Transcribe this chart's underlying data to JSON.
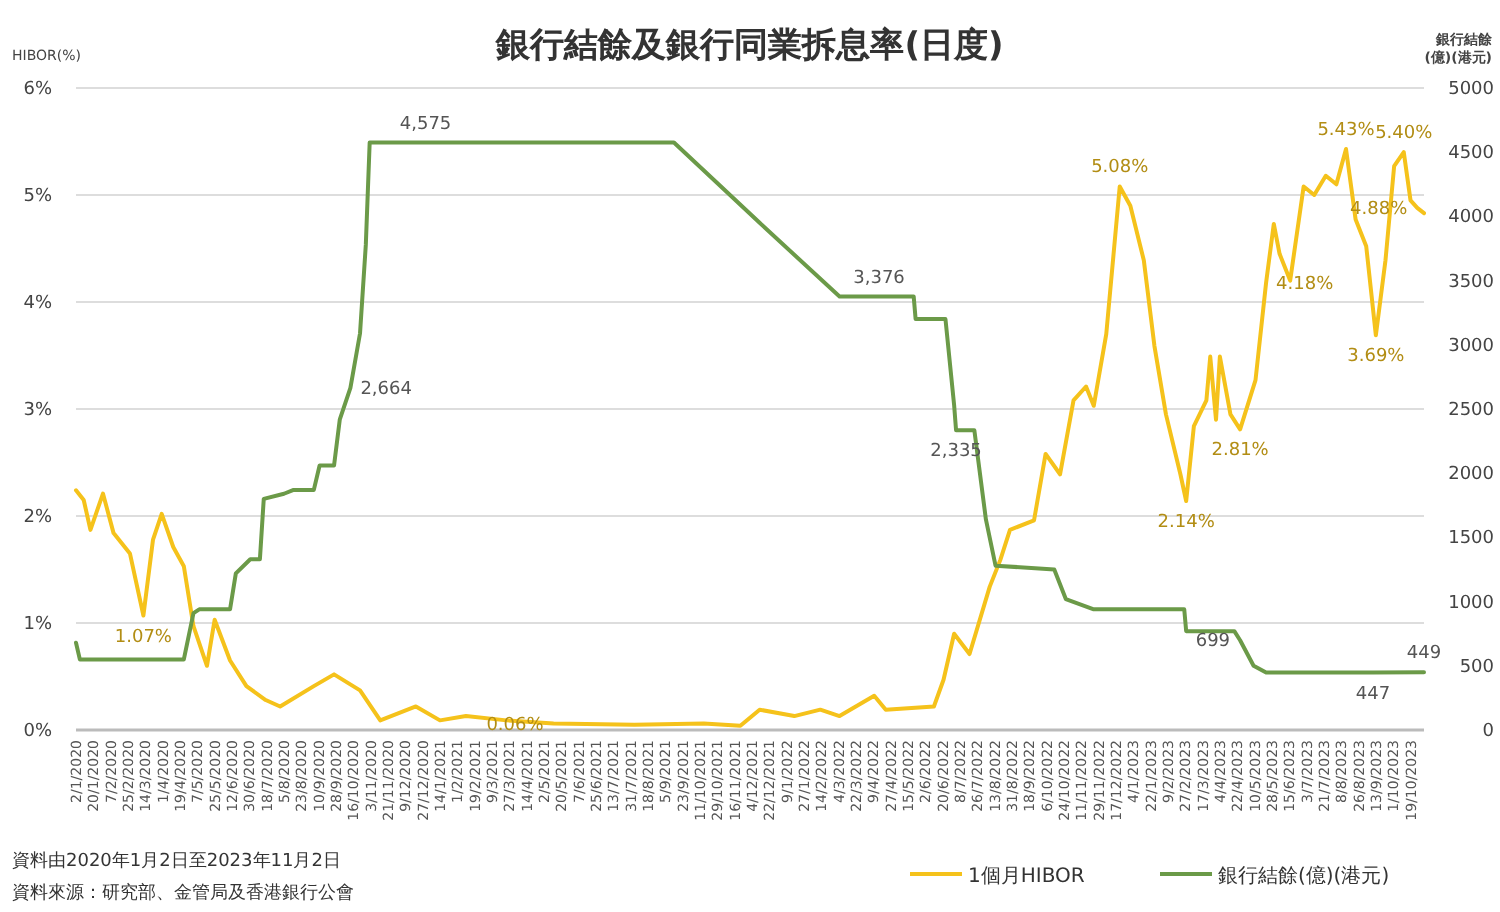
{
  "chart_data": {
    "type": "line",
    "title": "銀行結餘及銀行同業拆息率(日度)",
    "ylabel": "HIBOR(%)",
    "y2label": "銀行結餘\n(億)(港元)",
    "xlim": [
      "2020-01-02",
      "2023-11-02"
    ],
    "xticks": [
      {
        "value": "2020-01-02",
        "label": "2/1/2020"
      },
      {
        "value": "2020-01-20",
        "label": "20/1/2020"
      },
      {
        "value": "2020-02-07",
        "label": "7/2/2020"
      },
      {
        "value": "2020-02-25",
        "label": "25/2/2020"
      },
      {
        "value": "2020-03-14",
        "label": "14/3/2020"
      },
      {
        "value": "2020-04-01",
        "label": "1/4/2020"
      },
      {
        "value": "2020-04-19",
        "label": "19/4/2020"
      },
      {
        "value": "2020-05-07",
        "label": "7/5/2020"
      },
      {
        "value": "2020-05-25",
        "label": "25/5/2020"
      },
      {
        "value": "2020-06-12",
        "label": "12/6/2020"
      },
      {
        "value": "2020-06-30",
        "label": "30/6/2020"
      },
      {
        "value": "2020-07-18",
        "label": "18/7/2020"
      },
      {
        "value": "2020-08-05",
        "label": "5/8/2020"
      },
      {
        "value": "2020-08-23",
        "label": "23/8/2020"
      },
      {
        "value": "2020-09-10",
        "label": "10/9/2020"
      },
      {
        "value": "2020-09-28",
        "label": "28/9/2020"
      },
      {
        "value": "2020-10-16",
        "label": "16/10/2020"
      },
      {
        "value": "2020-11-03",
        "label": "3/11/2020"
      },
      {
        "value": "2020-11-21",
        "label": "21/11/2020"
      },
      {
        "value": "2020-12-09",
        "label": "9/12/2020"
      },
      {
        "value": "2020-12-27",
        "label": "27/12/2020"
      },
      {
        "value": "2021-01-14",
        "label": "14/1/2021"
      },
      {
        "value": "2021-02-01",
        "label": "1/2/2021"
      },
      {
        "value": "2021-02-19",
        "label": "19/2/2021"
      },
      {
        "value": "2021-03-09",
        "label": "9/3/2021"
      },
      {
        "value": "2021-03-27",
        "label": "27/3/2021"
      },
      {
        "value": "2021-04-14",
        "label": "14/4/2021"
      },
      {
        "value": "2021-05-02",
        "label": "2/5/2021"
      },
      {
        "value": "2021-05-20",
        "label": "20/5/2021"
      },
      {
        "value": "2021-06-07",
        "label": "7/6/2021"
      },
      {
        "value": "2021-06-25",
        "label": "25/6/2021"
      },
      {
        "value": "2021-07-13",
        "label": "13/7/2021"
      },
      {
        "value": "2021-07-31",
        "label": "31/7/2021"
      },
      {
        "value": "2021-08-18",
        "label": "18/8/2021"
      },
      {
        "value": "2021-09-05",
        "label": "5/9/2021"
      },
      {
        "value": "2021-09-23",
        "label": "23/9/2021"
      },
      {
        "value": "2021-10-11",
        "label": "11/10/2021"
      },
      {
        "value": "2021-10-29",
        "label": "29/10/2021"
      },
      {
        "value": "2021-11-16",
        "label": "16/11/2021"
      },
      {
        "value": "2021-12-04",
        "label": "4/12/2021"
      },
      {
        "value": "2021-12-22",
        "label": "22/12/2021"
      },
      {
        "value": "2022-01-09",
        "label": "9/1/2022"
      },
      {
        "value": "2022-01-27",
        "label": "27/1/2022"
      },
      {
        "value": "2022-02-14",
        "label": "14/2/2022"
      },
      {
        "value": "2022-03-04",
        "label": "4/3/2022"
      },
      {
        "value": "2022-03-22",
        "label": "22/3/2022"
      },
      {
        "value": "2022-04-09",
        "label": "9/4/2022"
      },
      {
        "value": "2022-04-27",
        "label": "27/4/2022"
      },
      {
        "value": "2022-05-15",
        "label": "15/5/2022"
      },
      {
        "value": "2022-06-02",
        "label": "2/6/2022"
      },
      {
        "value": "2022-06-20",
        "label": "20/6/2022"
      },
      {
        "value": "2022-07-08",
        "label": "8/7/2022"
      },
      {
        "value": "2022-07-26",
        "label": "26/7/2022"
      },
      {
        "value": "2022-08-13",
        "label": "13/8/2022"
      },
      {
        "value": "2022-08-31",
        "label": "31/8/2022"
      },
      {
        "value": "2022-09-18",
        "label": "18/9/2022"
      },
      {
        "value": "2022-10-06",
        "label": "6/10/2022"
      },
      {
        "value": "2022-10-24",
        "label": "24/10/2022"
      },
      {
        "value": "2022-11-11",
        "label": "11/11/2022"
      },
      {
        "value": "2022-11-29",
        "label": "29/11/2022"
      },
      {
        "value": "2022-12-17",
        "label": "17/12/2022"
      },
      {
        "value": "2023-01-04",
        "label": "4/1/2023"
      },
      {
        "value": "2023-01-22",
        "label": "22/1/2023"
      },
      {
        "value": "2023-02-09",
        "label": "9/2/2023"
      },
      {
        "value": "2023-02-27",
        "label": "27/2/2023"
      },
      {
        "value": "2023-03-17",
        "label": "17/3/2023"
      },
      {
        "value": "2023-04-04",
        "label": "4/4/2023"
      },
      {
        "value": "2023-04-22",
        "label": "22/4/2023"
      },
      {
        "value": "2023-05-10",
        "label": "10/5/2023"
      },
      {
        "value": "2023-05-28",
        "label": "28/5/2023"
      },
      {
        "value": "2023-06-15",
        "label": "15/6/2023"
      },
      {
        "value": "2023-07-03",
        "label": "3/7/2023"
      },
      {
        "value": "2023-07-21",
        "label": "21/7/2023"
      },
      {
        "value": "2023-08-08",
        "label": "8/8/2023"
      },
      {
        "value": "2023-08-26",
        "label": "26/8/2023"
      },
      {
        "value": "2023-09-13",
        "label": "13/9/2023"
      },
      {
        "value": "2023-10-01",
        "label": "1/10/2023"
      },
      {
        "value": "2023-10-19",
        "label": "19/10/2023"
      }
    ],
    "ylim": [
      0,
      6
    ],
    "yticks": [
      {
        "value": 0,
        "label": "0%"
      },
      {
        "value": 1,
        "label": "1%"
      },
      {
        "value": 2,
        "label": "2%"
      },
      {
        "value": 3,
        "label": "3%"
      },
      {
        "value": 4,
        "label": "4%"
      },
      {
        "value": 5,
        "label": "5%"
      },
      {
        "value": 6,
        "label": "6%"
      }
    ],
    "y2lim": [
      0,
      5000
    ],
    "y2ticks": [
      0,
      500,
      1000,
      1500,
      2000,
      2500,
      3000,
      3500,
      4000,
      4500,
      5000
    ],
    "grid": "y",
    "legend": "bottom",
    "marker": "none",
    "line_style": "solid",
    "series": [
      {
        "name": "1個月HIBOR",
        "color": "#f5c21b",
        "x": [
          "2020-01-02",
          "2020-01-10",
          "2020-01-17",
          "2020-01-30",
          "2020-02-10",
          "2020-02-27",
          "2020-03-12",
          "2020-03-22",
          "2020-03-31",
          "2020-04-12",
          "2020-04-23",
          "2020-05-03",
          "2020-05-17",
          "2020-05-25",
          "2020-06-10",
          "2020-06-27",
          "2020-07-17",
          "2020-08-01",
          "2020-09-05",
          "2020-09-26",
          "2020-10-23",
          "2020-11-13",
          "2020-12-20",
          "2021-01-14",
          "2021-02-10",
          "2021-03-24",
          "2021-05-12",
          "2021-08-04",
          "2021-10-15",
          "2021-11-22",
          "2021-12-12",
          "2022-01-17",
          "2022-02-13",
          "2022-03-05",
          "2022-04-10",
          "2022-04-22",
          "2022-06-11",
          "2022-06-21",
          "2022-07-02",
          "2022-07-18",
          "2022-08-08",
          "2022-08-19",
          "2022-08-29",
          "2022-09-23",
          "2022-10-05",
          "2022-10-20",
          "2022-11-03",
          "2022-11-16",
          "2022-11-24",
          "2022-12-07",
          "2022-12-21",
          "2023-01-01",
          "2023-01-15",
          "2023-01-26",
          "2023-02-07",
          "2023-02-22",
          "2023-02-28",
          "2023-03-08",
          "2023-03-21",
          "2023-03-25",
          "2023-03-31",
          "2023-04-04",
          "2023-04-15",
          "2023-04-25",
          "2023-05-11",
          "2023-05-22",
          "2023-05-30",
          "2023-06-05",
          "2023-06-16",
          "2023-06-30",
          "2023-07-11",
          "2023-07-23",
          "2023-08-03",
          "2023-08-13",
          "2023-08-23",
          "2023-09-03",
          "2023-09-13",
          "2023-09-23",
          "2023-10-02",
          "2023-10-12",
          "2023-10-19",
          "2023-10-26",
          "2023-11-02"
        ],
        "values": [
          2.24,
          2.15,
          1.87,
          2.21,
          1.84,
          1.65,
          1.07,
          1.78,
          2.02,
          1.71,
          1.53,
          0.97,
          0.6,
          1.03,
          0.65,
          0.41,
          0.28,
          0.22,
          0.41,
          0.52,
          0.37,
          0.09,
          0.22,
          0.09,
          0.13,
          0.09,
          0.06,
          0.05,
          0.06,
          0.04,
          0.19,
          0.13,
          0.19,
          0.13,
          0.32,
          0.19,
          0.22,
          0.47,
          0.9,
          0.71,
          1.34,
          1.59,
          1.87,
          1.96,
          2.58,
          2.39,
          3.08,
          3.21,
          3.03,
          3.7,
          5.08,
          4.9,
          4.39,
          3.59,
          2.95,
          2.39,
          2.14,
          2.84,
          3.08,
          3.49,
          2.9,
          3.49,
          2.95,
          2.81,
          3.27,
          4.18,
          4.73,
          4.45,
          4.2,
          5.08,
          5.0,
          5.18,
          5.1,
          5.43,
          4.77,
          4.52,
          3.69,
          4.39,
          5.27,
          5.4,
          4.95,
          4.88,
          4.83
        ],
        "value_labels": [
          null,
          null,
          null,
          null,
          null,
          null,
          "1.07%",
          null,
          null,
          null,
          null,
          null,
          null,
          null,
          null,
          null,
          null,
          null,
          null,
          null,
          null,
          null,
          null,
          null,
          null,
          null,
          "0.06%",
          null,
          null,
          null,
          null,
          null,
          null,
          null,
          null,
          null,
          null,
          null,
          null,
          null,
          null,
          null,
          null,
          null,
          null,
          null,
          null,
          null,
          null,
          null,
          "5.08%",
          null,
          null,
          null,
          null,
          null,
          "2.14%",
          null,
          null,
          null,
          null,
          null,
          null,
          "2.81%",
          null,
          "4.18%",
          null,
          null,
          null,
          null,
          null,
          null,
          null,
          "5.43%",
          null,
          null,
          "3.69%",
          null,
          null,
          "5.40%",
          null,
          "4.88%",
          null
        ]
      },
      {
        "name": "銀行結餘(億)(港元)",
        "color": "#6b9a48",
        "axis": "y2",
        "x": [
          "2020-01-02",
          "2020-01-06",
          "2020-04-23",
          "2020-05-03",
          "2020-05-09",
          "2020-06-10",
          "2020-06-16",
          "2020-07-01",
          "2020-07-11",
          "2020-07-15",
          "2020-08-05",
          "2020-08-15",
          "2020-09-05",
          "2020-09-11",
          "2020-09-26",
          "2020-10-02",
          "2020-10-13",
          "2020-10-23",
          "2020-10-29",
          "2020-11-02",
          "2020-12-30",
          "2021-09-14",
          "2021-12-12",
          "2022-03-05",
          "2022-04-15",
          "2022-05-21",
          "2022-05-23",
          "2022-06-23",
          "2022-07-02",
          "2022-07-04",
          "2022-07-23",
          "2022-08-04",
          "2022-08-14",
          "2022-10-14",
          "2022-10-26",
          "2022-11-24",
          "2023-02-26",
          "2023-02-28",
          "2023-04-19",
          "2023-04-25",
          "2023-05-09",
          "2023-05-22",
          "2023-09-10",
          "2023-11-02"
        ],
        "values": [
          680,
          550,
          550,
          910,
          940,
          940,
          1220,
          1330,
          1330,
          1800,
          1840,
          1870,
          1870,
          2060,
          2060,
          2420,
          2664,
          3090,
          3780,
          4575,
          4575,
          4575,
          3950,
          3376,
          3376,
          3376,
          3200,
          3200,
          2530,
          2335,
          2335,
          1640,
          1280,
          1250,
          1020,
          940,
          940,
          770,
          770,
          699,
          500,
          447,
          447,
          449
        ],
        "value_labels": [
          null,
          null,
          null,
          null,
          null,
          null,
          null,
          null,
          null,
          null,
          null,
          null,
          null,
          null,
          null,
          null,
          "2,664",
          null,
          null,
          null,
          "4,575",
          null,
          null,
          null,
          "3,376",
          null,
          null,
          null,
          null,
          "2,335",
          null,
          null,
          null,
          null,
          null,
          null,
          null,
          null,
          null,
          "699",
          null,
          null,
          "447",
          "449"
        ]
      }
    ],
    "annotations": [
      "資料由2020年1月2日至2023年11月2日",
      "資料來源：研究部、金管局及香港銀行公會"
    ]
  }
}
